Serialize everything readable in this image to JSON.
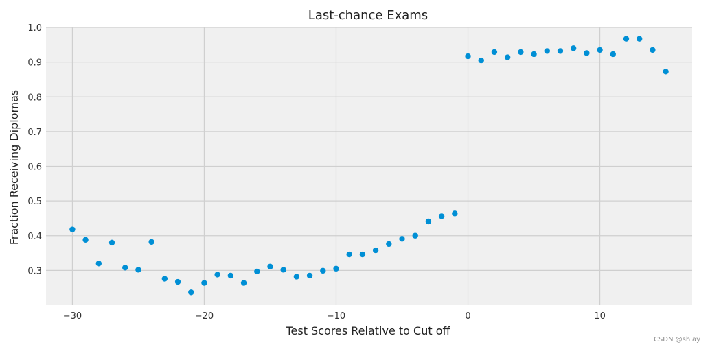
{
  "chart_data": {
    "type": "scatter",
    "title": "Last-chance Exams",
    "xlabel": "Test Scores Relative to Cut off",
    "ylabel": "Fraction Receiving Diplomas",
    "xlim": [
      -32,
      17
    ],
    "ylim": [
      0.2,
      1.0
    ],
    "xticks": [
      -30,
      -20,
      -10,
      0,
      10
    ],
    "xtick_labels": [
      "−30",
      "−20",
      "−10",
      "0",
      "10"
    ],
    "yticks": [
      0.3,
      0.4,
      0.5,
      0.6,
      0.7,
      0.8,
      0.9,
      1.0
    ],
    "ytick_labels": [
      "0.3",
      "0.4",
      "0.5",
      "0.6",
      "0.7",
      "0.8",
      "0.9",
      "1.0"
    ],
    "grid": true,
    "point_color": "#008fd5",
    "background_color": "#f0f0f0",
    "x": [
      -30,
      -29,
      -28,
      -27,
      -26,
      -25,
      -24,
      -23,
      -22,
      -21,
      -20,
      -19,
      -18,
      -17,
      -16,
      -15,
      -14,
      -13,
      -12,
      -11,
      -10,
      -9,
      -8,
      -7,
      -6,
      -5,
      -4,
      -3,
      -2,
      -1,
      0,
      1,
      2,
      3,
      4,
      5,
      6,
      7,
      8,
      9,
      10,
      11,
      12,
      13,
      14,
      15
    ],
    "y": [
      0.418,
      0.388,
      0.32,
      0.38,
      0.308,
      0.302,
      0.382,
      0.276,
      0.267,
      0.237,
      0.264,
      0.288,
      0.285,
      0.264,
      0.297,
      0.311,
      0.302,
      0.282,
      0.285,
      0.299,
      0.305,
      0.346,
      0.346,
      0.358,
      0.376,
      0.391,
      0.4,
      0.441,
      0.456,
      0.464,
      0.917,
      0.905,
      0.929,
      0.914,
      0.929,
      0.923,
      0.932,
      0.932,
      0.94,
      0.926,
      0.935,
      0.923,
      0.967,
      0.967,
      0.935,
      0.873
    ]
  },
  "watermark": "CSDN @shlay"
}
